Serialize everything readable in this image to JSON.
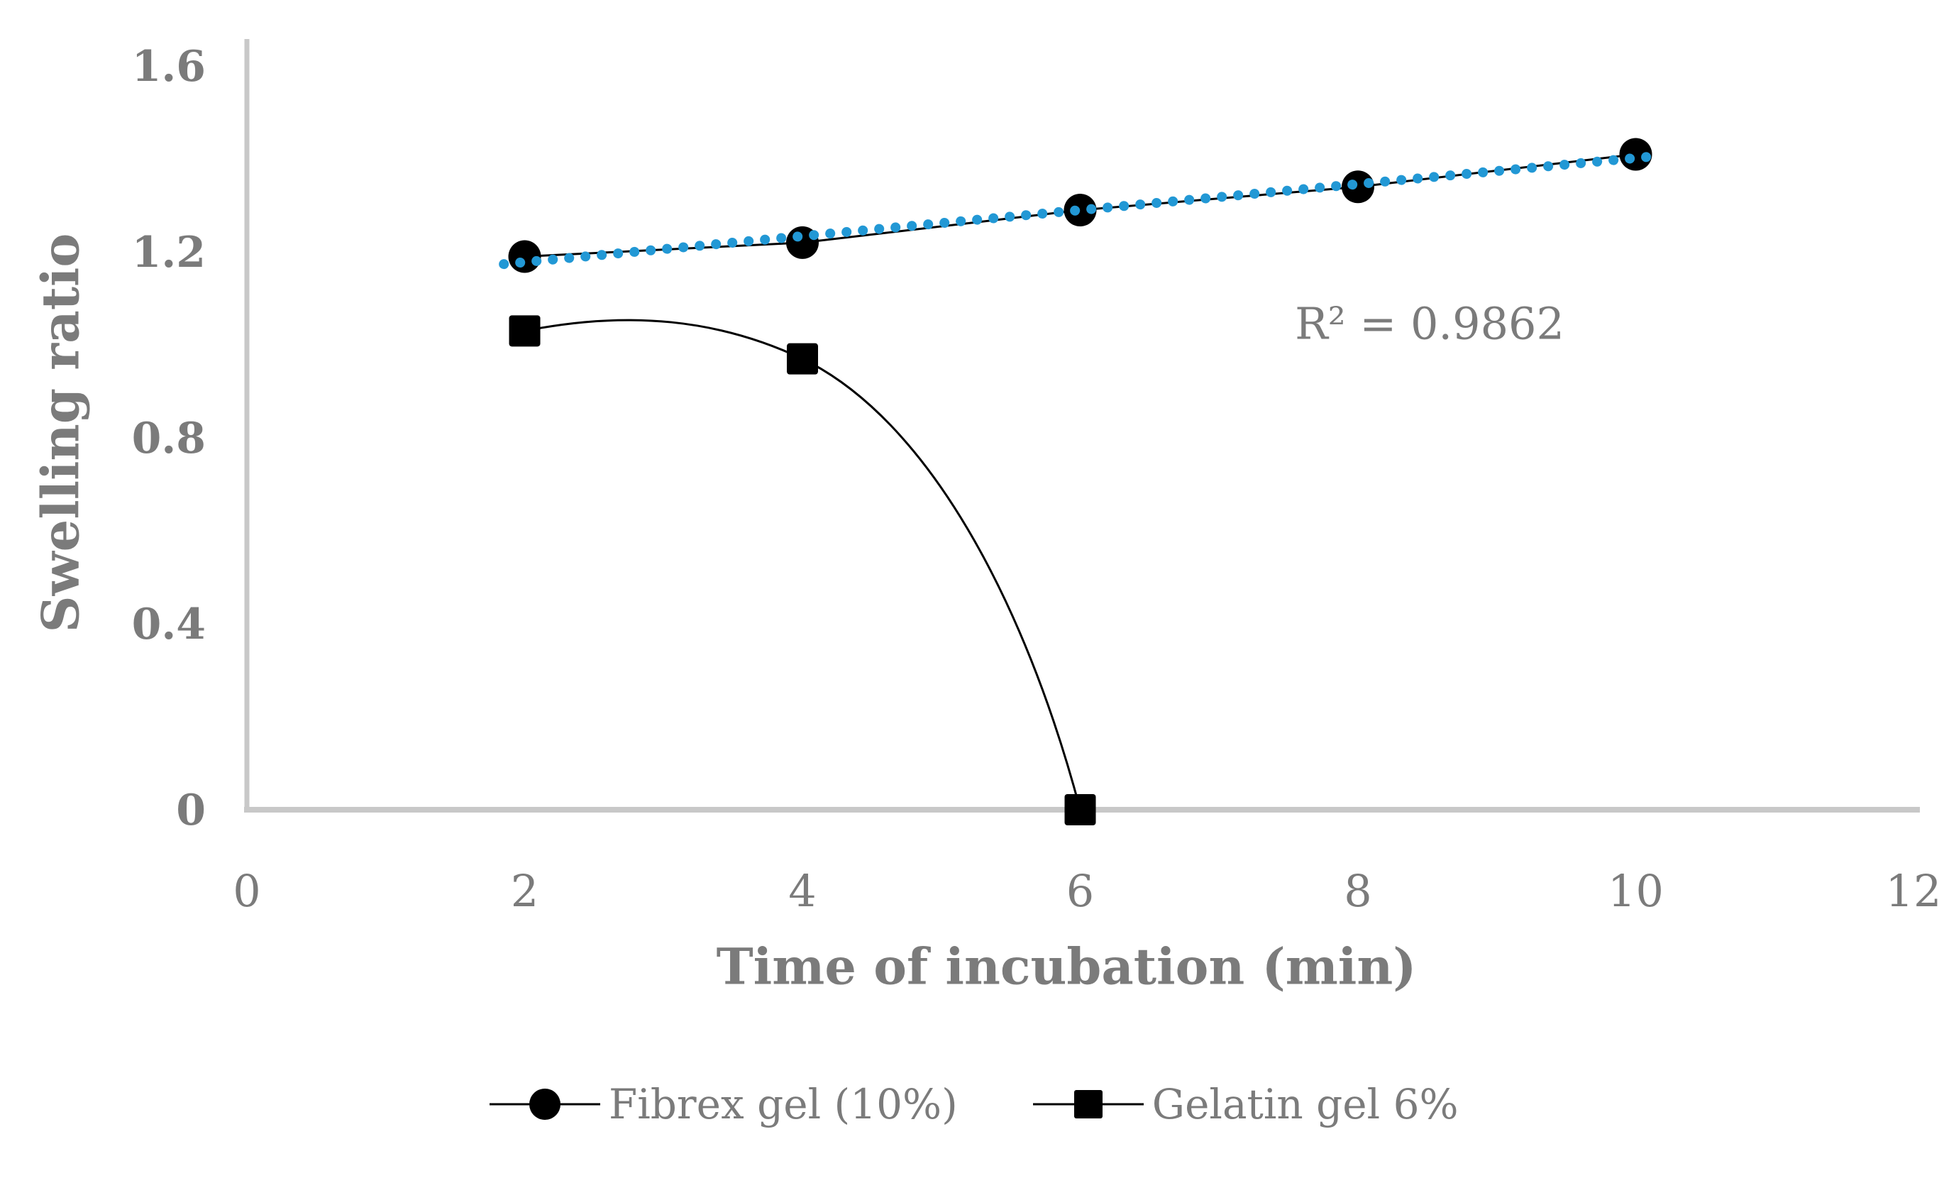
{
  "chart_data": {
    "type": "scatter",
    "title": "",
    "xlabel": "Time of incubation (min)",
    "ylabel": "Swelling ratio",
    "xlim": [
      0,
      12
    ],
    "ylim": [
      0,
      1.6
    ],
    "grid": false,
    "legend_position": "bottom-center",
    "x_ticks": {
      "values": [
        0,
        2,
        4,
        6,
        8,
        10,
        12
      ],
      "labels": [
        "0",
        "2",
        "4",
        "6",
        "8",
        "10",
        "12"
      ]
    },
    "y_ticks": {
      "values": [
        0,
        0.4,
        0.8,
        1.2,
        1.6
      ],
      "labels": [
        "0",
        "0.4",
        "0.8",
        "1.2",
        "1.6"
      ]
    },
    "series": [
      {
        "name": "Fibrex gel (10%)",
        "marker": "circle",
        "line": "straight",
        "color": "#000000",
        "x": [
          2,
          4,
          6,
          8,
          10
        ],
        "values": [
          1.19,
          1.22,
          1.29,
          1.34,
          1.41
        ]
      },
      {
        "name": "Gelatin gel 6%",
        "marker": "square",
        "line": "smooth",
        "color": "#000000",
        "x": [
          2,
          4,
          6
        ],
        "values": [
          1.03,
          0.97,
          0.0
        ]
      }
    ],
    "trendline": {
      "applies_to": "Fibrex gel (10%)",
      "type": "linear",
      "slope": 0.028,
      "intercept": 1.122,
      "x_start": 1.85,
      "x_end": 10.15,
      "style": "dotted",
      "color": "#2298d5",
      "annotation": "R² = 0.9862"
    },
    "colors": {
      "text_gray": "#7b7b7b",
      "axis_gray": "#c8c8c8",
      "trend_blue": "#2298d5",
      "marker_black": "#000000",
      "background": "#ffffff"
    }
  }
}
